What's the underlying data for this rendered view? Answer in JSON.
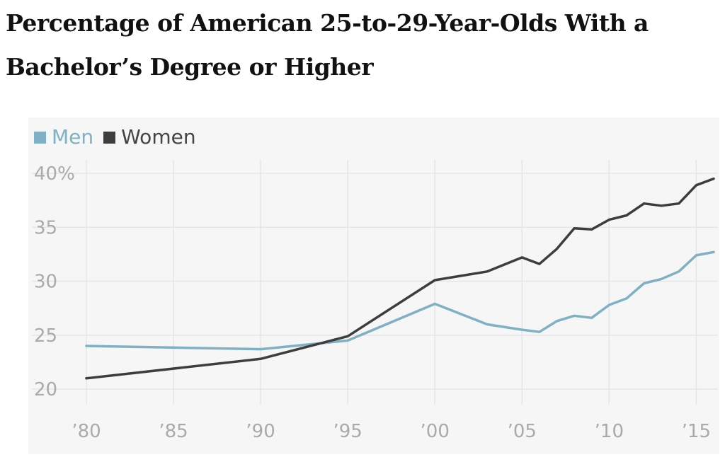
{
  "chart_data": {
    "type": "line",
    "title": "Percentage of American 25-to-29-Year-Olds With a Bachelor’s Degree or Higher",
    "xlabel": "",
    "ylabel": "",
    "xlim": [
      1980,
      2016
    ],
    "ylim": [
      20,
      40
    ],
    "x_ticks": [
      1980,
      1985,
      1990,
      1995,
      2000,
      2005,
      2010,
      2015
    ],
    "x_tick_labels": [
      "’80",
      "’85",
      "’90",
      "’95",
      "’00",
      "’05",
      "’10",
      "’15"
    ],
    "y_ticks": [
      20,
      25,
      30,
      35,
      40
    ],
    "y_tick_labels": [
      "20",
      "25",
      "30",
      "35",
      "40%"
    ],
    "grid": true,
    "legend_position": "top-left",
    "series": [
      {
        "name": "Men",
        "color": "#7fb0c4",
        "x": [
          1980,
          1990,
          1995,
          2000,
          2003,
          2005,
          2006,
          2007,
          2008,
          2009,
          2010,
          2011,
          2012,
          2013,
          2014,
          2015,
          2016
        ],
        "y": [
          24.0,
          23.7,
          24.5,
          27.9,
          26.0,
          25.5,
          25.3,
          26.3,
          26.8,
          26.6,
          27.8,
          28.4,
          29.8,
          30.2,
          30.9,
          32.4,
          32.7
        ]
      },
      {
        "name": "Women",
        "color": "#3d3d3d",
        "x": [
          1980,
          1990,
          1995,
          2000,
          2003,
          2005,
          2006,
          2007,
          2008,
          2009,
          2010,
          2011,
          2012,
          2013,
          2014,
          2015,
          2016
        ],
        "y": [
          21.0,
          22.8,
          24.9,
          30.1,
          30.9,
          32.2,
          31.6,
          33.0,
          34.9,
          34.8,
          35.7,
          36.1,
          37.2,
          37.0,
          37.2,
          38.9,
          39.5
        ]
      }
    ]
  }
}
